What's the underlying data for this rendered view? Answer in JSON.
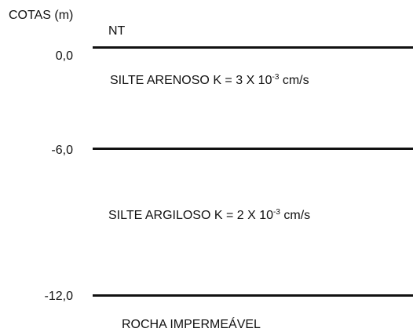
{
  "axis_title": "COTAS (m)",
  "water_table_label": "NT",
  "elevations": [
    "0,0",
    "-6,0",
    "-12,0"
  ],
  "layers": [
    {
      "name": "SILTE ARENOSO",
      "k_prefix": "K = 3 X 10",
      "k_exponent": "-3",
      "k_unit": "cm/s"
    },
    {
      "name": "SILTE ARGILOSO",
      "k_prefix": "K = 2 X 10",
      "k_exponent": "-3",
      "k_unit": "cm/s"
    }
  ],
  "bedrock_label": "ROCHA IMPERMEÁVEL",
  "colors": {
    "line": "#111111",
    "text": "#111111",
    "background": "#ffffff"
  }
}
